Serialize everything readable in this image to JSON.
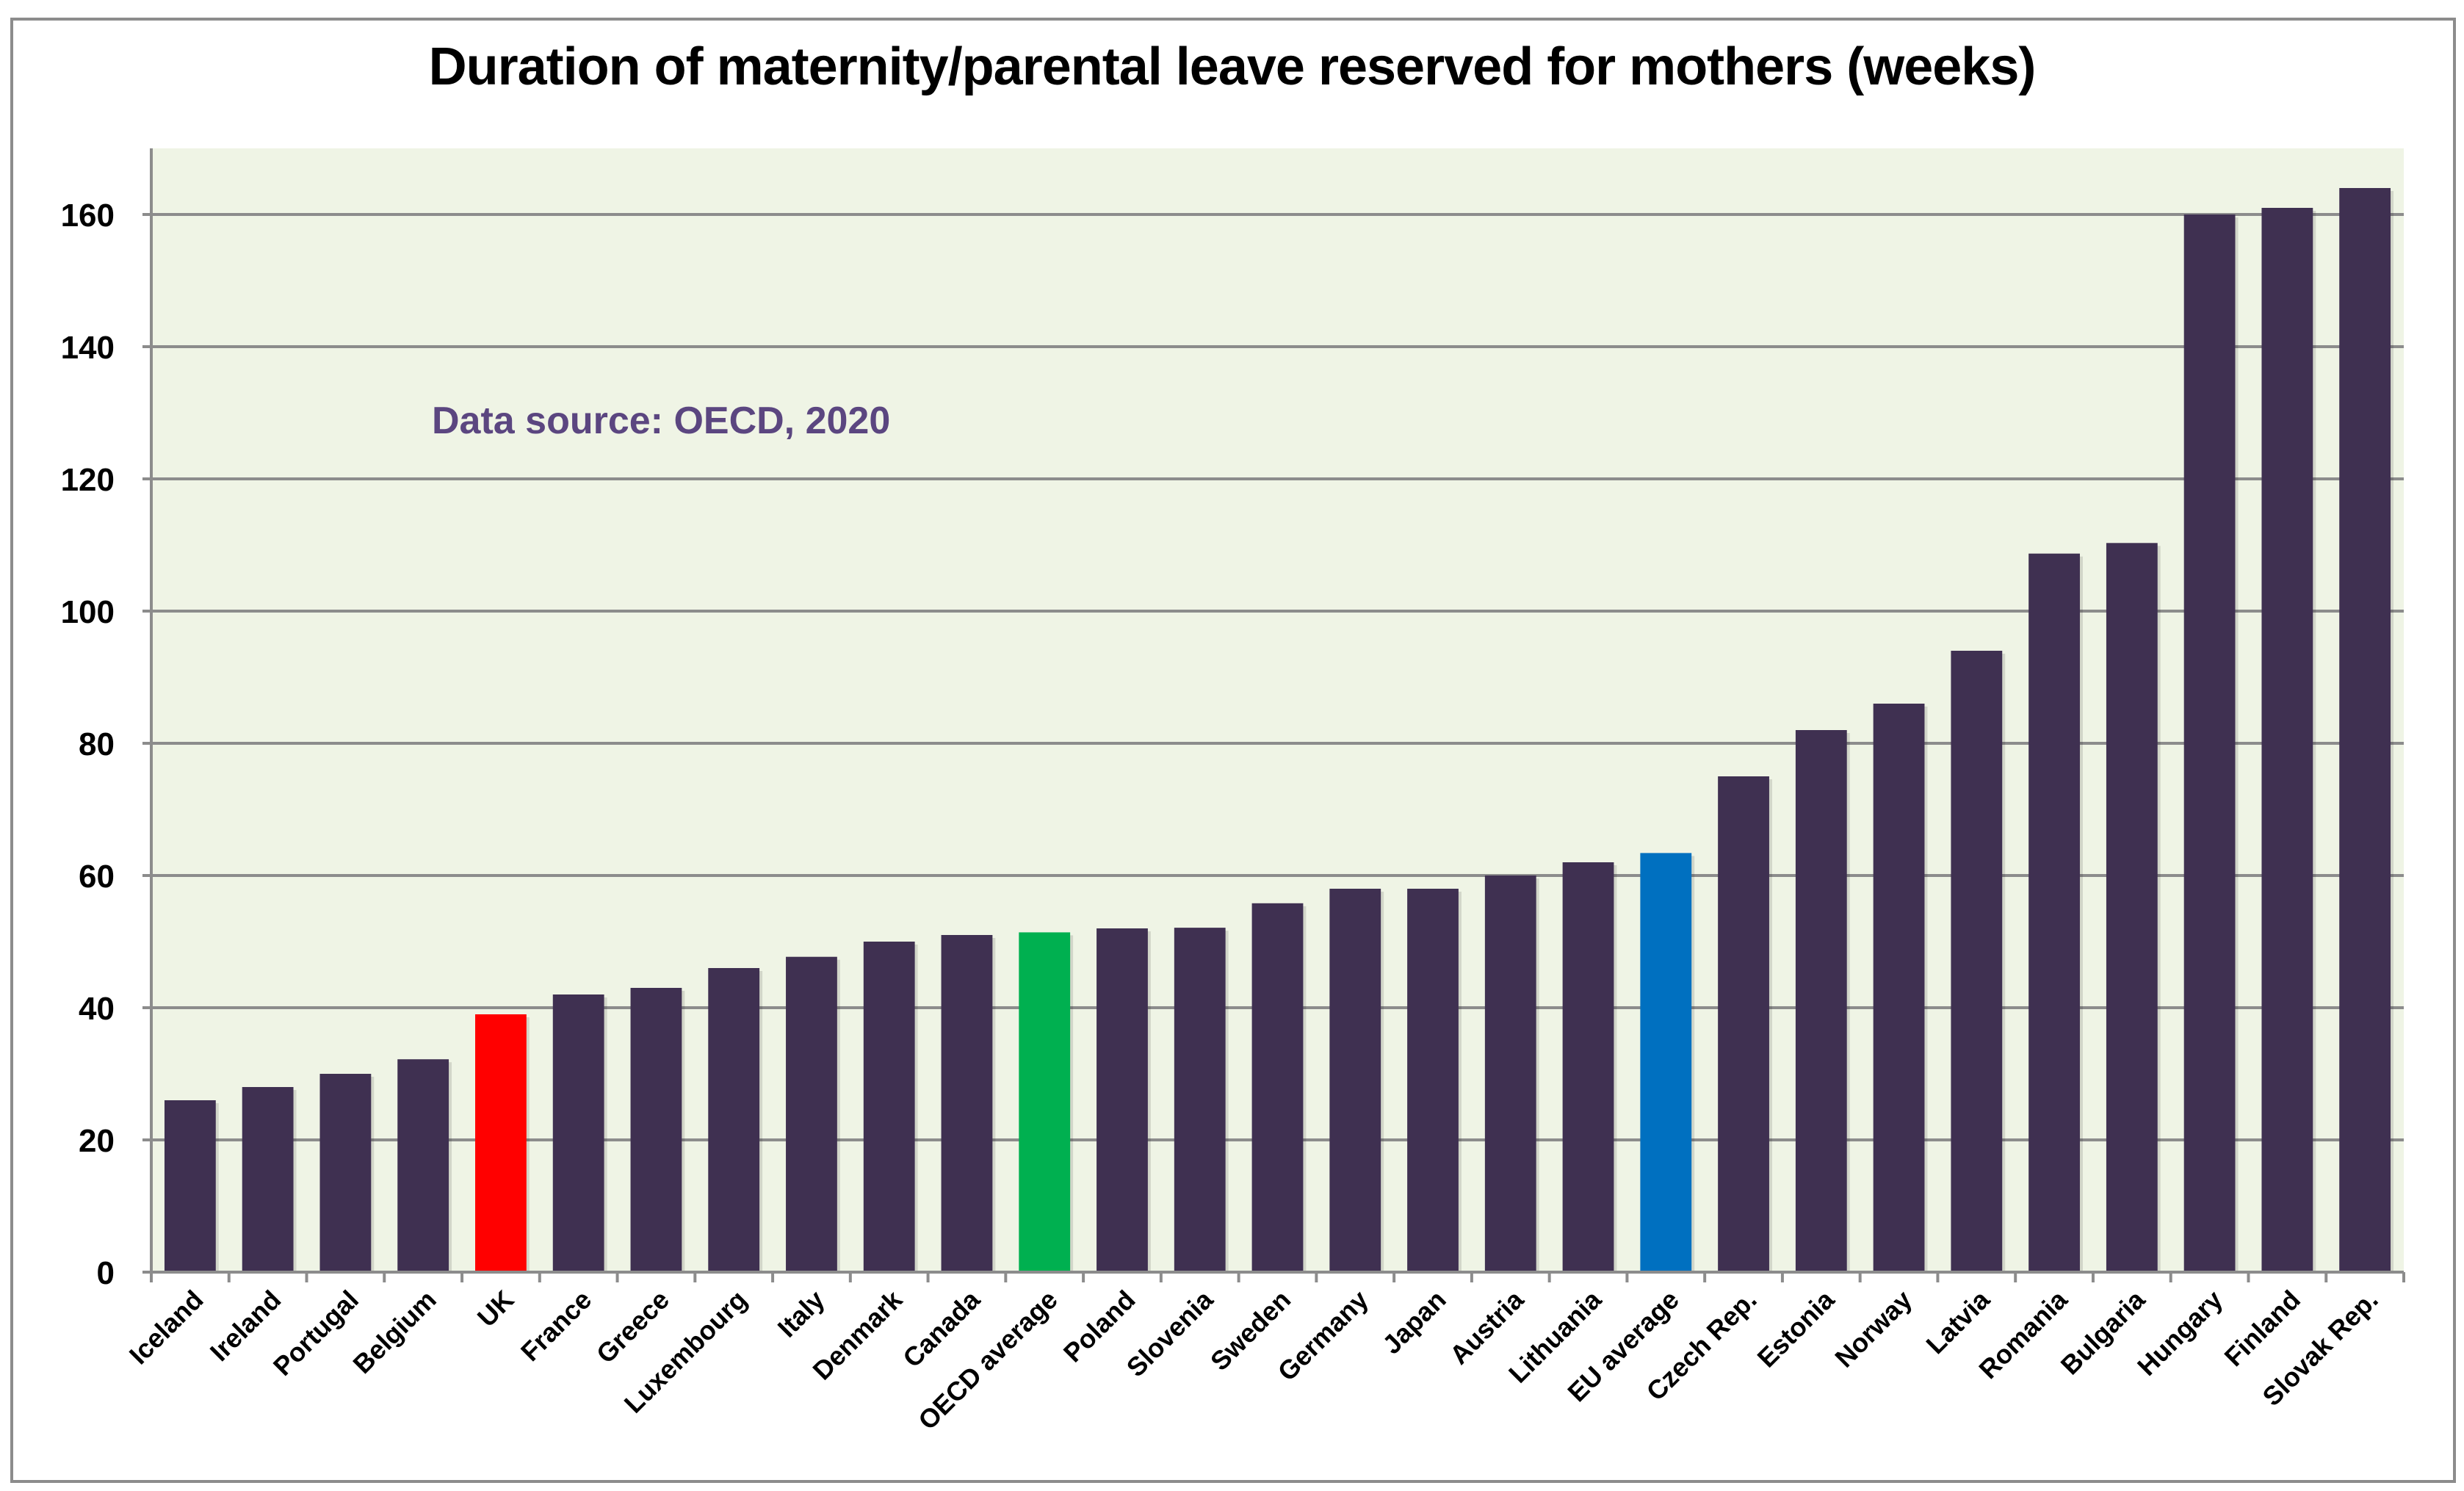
{
  "chart_data": {
    "type": "bar",
    "title": "Duration of maternity/parental leave reserved for mothers (weeks)",
    "xlabel": "",
    "ylabel": "",
    "ylim": [
      0,
      170
    ],
    "yticks": [
      0,
      20,
      40,
      60,
      80,
      100,
      120,
      140,
      160
    ],
    "grid": true,
    "legend": "none",
    "annotation": "Data source: OECD, 2020",
    "categories": [
      "Iceland",
      "Ireland",
      "Portugal",
      "Belgium",
      "UK",
      "France",
      "Greece",
      "Luxembourg",
      "Italy",
      "Denmark",
      "Canada",
      "OECD average",
      "Poland",
      "Slovenia",
      "Sweden",
      "Germany",
      "Japan",
      "Austria",
      "Lithuania",
      "EU average",
      "Czech Rep.",
      "Estonia",
      "Norway",
      "Latvia",
      "Romania",
      "Bulgaria",
      "Hungary",
      "Finland",
      "Slovak Rep."
    ],
    "values": [
      26,
      28,
      30,
      32.2,
      39,
      42,
      43,
      46,
      47.7,
      50,
      51,
      51.4,
      52,
      52.1,
      55.8,
      58,
      58,
      60,
      62,
      63.4,
      75,
      82,
      86,
      94,
      108.7,
      110.3,
      160,
      161,
      164
    ],
    "highlights": {
      "UK": "#ff0000",
      "OECD average": "#00b050",
      "EU average": "#0070c0"
    }
  },
  "colors": {
    "bar_default": "#3f3051",
    "plot_background": "#eff4e5",
    "gridline": "#8c8c8c",
    "annotation": "#5b4680"
  }
}
